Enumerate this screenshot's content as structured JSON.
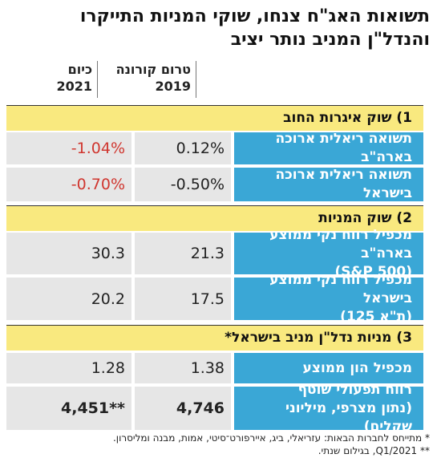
{
  "title": {
    "line1": "תשואות האג\"ח צנחו, שוקי המניות התייקרו",
    "line2": "והנדל\"ן המניב נותר יציב"
  },
  "columns": {
    "pre_corona": "טרום קורונה",
    "pre_corona_year": "2019",
    "today": "כיום",
    "today_year": "2021"
  },
  "sections": [
    {
      "title": "1) שוק איגרות החוב",
      "rows": [
        {
          "label": "תשואה ריאלית ארוכה בארה\"ב",
          "pre": "0.12%",
          "now": "-1.04%"
        },
        {
          "label": "תשואה ריאלית ארוכה בישראל",
          "pre": "-0.50%",
          "now": "-0.70%"
        }
      ]
    },
    {
      "title": "2) שוק המניות",
      "rows": [
        {
          "label_line1": "מכפיל רווח נקי ממוצע בארה\"ב",
          "label_line2": "(S&P 500)",
          "pre": "21.3",
          "now": "30.3"
        },
        {
          "label_line1": "מכפיל רווח נקי ממוצע בישראל",
          "label_line2": "(ת\"א 125)",
          "pre": "17.5",
          "now": "20.2"
        }
      ]
    },
    {
      "title": "3) מניות נדל\"ן מניב בישראל*",
      "rows": [
        {
          "label": "מכפיל הון ממוצע",
          "pre": "1.38",
          "now": "1.28"
        },
        {
          "label_line1": "רווח תפעולי שוטף",
          "label_line2": "(נתון מצרפי, מיליוני שקלים)",
          "pre": "4,746",
          "now": "4,451**"
        }
      ]
    }
  ],
  "notes": {
    "note1": "*  מתייחס לחברות הבאות: עזריאלי, ביג, איירפורט־סיטי, אמות, מבנה ומליסרון.",
    "note2": "** Q1/2021, בגילום שנתי."
  },
  "colors": {
    "section_bg": "#f9e97f",
    "label_bg": "#3aa7d6",
    "value_bg": "#e6e6e6",
    "negative_today": "#d0362f"
  }
}
